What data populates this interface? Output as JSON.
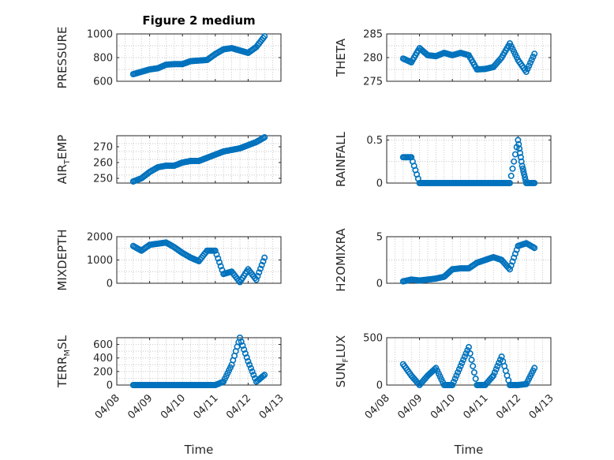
{
  "title": "Figure 2 medium",
  "xlabel": "Time",
  "colors": {
    "marker": "#0072bd",
    "axis": "#262626",
    "grid": "#b4b4b4"
  },
  "chart_data": [
    {
      "type": "scatter",
      "ylabel": [
        "PRESSURE"
      ],
      "ylim": [
        600,
        1000
      ],
      "yticks": [
        600,
        800,
        1000
      ],
      "xlim": [
        "04/08",
        "04/13"
      ],
      "xticks": [
        "04/08",
        "04/09",
        "04/10",
        "04/11",
        "04/12",
        "04/13"
      ],
      "show_x_tick_labels": false,
      "grid": true,
      "x": [
        "04/08 12:00",
        "04/08 18:00",
        "04/09 00:00",
        "04/09 06:00",
        "04/09 12:00",
        "04/09 18:00",
        "04/10 00:00",
        "04/10 06:00",
        "04/10 12:00",
        "04/10 18:00",
        "04/11 00:00",
        "04/11 06:00",
        "04/11 12:00",
        "04/11 18:00",
        "04/12 00:00",
        "04/12 06:00",
        "04/12 12:00"
      ],
      "y": [
        660,
        680,
        700,
        710,
        740,
        745,
        745,
        770,
        775,
        780,
        830,
        870,
        880,
        860,
        840,
        890,
        980
      ]
    },
    {
      "type": "scatter",
      "ylabel": [
        "THETA"
      ],
      "ylim": [
        275,
        285
      ],
      "yticks": [
        275,
        280,
        285
      ],
      "xlim": [
        "04/08",
        "04/13"
      ],
      "xticks": [
        "04/08",
        "04/09",
        "04/10",
        "04/11",
        "04/12",
        "04/13"
      ],
      "show_x_tick_labels": false,
      "grid": true,
      "x": [
        "04/08 12:00",
        "04/08 18:00",
        "04/09 00:00",
        "04/09 06:00",
        "04/09 12:00",
        "04/09 18:00",
        "04/10 00:00",
        "04/10 06:00",
        "04/10 12:00",
        "04/10 18:00",
        "04/11 00:00",
        "04/11 06:00",
        "04/11 12:00",
        "04/11 18:00",
        "04/12 00:00",
        "04/12 06:00",
        "04/12 12:00"
      ],
      "y": [
        279.8,
        279.0,
        282.0,
        280.5,
        280.3,
        281.0,
        280.5,
        281.0,
        280.5,
        277.5,
        277.6,
        278.0,
        280.0,
        283.0,
        279.5,
        277.0,
        280.8
      ]
    },
    {
      "type": "scatter",
      "ylabel": [
        "AIR",
        "T",
        "EMP"
      ],
      "ylim": [
        247,
        277
      ],
      "yticks": [
        250,
        260,
        270
      ],
      "xlim": [
        "04/08",
        "04/13"
      ],
      "xticks": [
        "04/08",
        "04/09",
        "04/10",
        "04/11",
        "04/12",
        "04/13"
      ],
      "show_x_tick_labels": false,
      "grid": true,
      "x": [
        "04/08 12:00",
        "04/08 18:00",
        "04/09 00:00",
        "04/09 06:00",
        "04/09 12:00",
        "04/09 18:00",
        "04/10 00:00",
        "04/10 06:00",
        "04/10 12:00",
        "04/10 18:00",
        "04/11 00:00",
        "04/11 06:00",
        "04/11 12:00",
        "04/11 18:00",
        "04/12 00:00",
        "04/12 06:00",
        "04/12 12:00"
      ],
      "y": [
        248,
        250,
        254,
        257,
        258,
        258,
        260,
        261,
        261,
        263,
        265,
        267,
        268,
        269,
        271,
        273,
        276
      ]
    },
    {
      "type": "scatter",
      "ylabel": [
        "RAINFALL"
      ],
      "ylim": [
        0,
        0.55
      ],
      "yticks": [
        0,
        0.5
      ],
      "xlim": [
        "04/08",
        "04/13"
      ],
      "xticks": [
        "04/08",
        "04/09",
        "04/10",
        "04/11",
        "04/12",
        "04/13"
      ],
      "show_x_tick_labels": false,
      "grid": true,
      "x": [
        "04/08 12:00",
        "04/08 18:00",
        "04/09 00:00",
        "04/09 06:00",
        "04/09 12:00",
        "04/09 18:00",
        "04/10 00:00",
        "04/10 06:00",
        "04/10 12:00",
        "04/10 18:00",
        "04/11 00:00",
        "04/11 06:00",
        "04/11 12:00",
        "04/11 18:00",
        "04/12 00:00",
        "04/12 03:00",
        "04/12 06:00",
        "04/12 12:00"
      ],
      "y": [
        0.3,
        0.3,
        0,
        0,
        0,
        0,
        0,
        0,
        0,
        0,
        0,
        0,
        0,
        0,
        0.5,
        0.2,
        0,
        0
      ]
    },
    {
      "type": "scatter",
      "ylabel": [
        "MIXDEPTH"
      ],
      "ylim": [
        0,
        2000
      ],
      "yticks": [
        0,
        1000,
        2000
      ],
      "xlim": [
        "04/08",
        "04/13"
      ],
      "xticks": [
        "04/08",
        "04/09",
        "04/10",
        "04/11",
        "04/12",
        "04/13"
      ],
      "show_x_tick_labels": false,
      "grid": true,
      "x": [
        "04/08 12:00",
        "04/08 18:00",
        "04/09 00:00",
        "04/09 06:00",
        "04/09 12:00",
        "04/09 18:00",
        "04/10 00:00",
        "04/10 06:00",
        "04/10 12:00",
        "04/10 18:00",
        "04/11 00:00",
        "04/11 06:00",
        "04/11 12:00",
        "04/11 18:00",
        "04/12 00:00",
        "04/12 06:00",
        "04/12 12:00"
      ],
      "y": [
        1600,
        1400,
        1650,
        1700,
        1750,
        1550,
        1300,
        1100,
        950,
        1400,
        1400,
        400,
        500,
        50,
        600,
        150,
        1100
      ]
    },
    {
      "type": "scatter",
      "ylabel": [
        "H2OMIXRA"
      ],
      "ylim": [
        0,
        5
      ],
      "yticks": [
        0,
        5
      ],
      "xlim": [
        "04/08",
        "04/13"
      ],
      "xticks": [
        "04/08",
        "04/09",
        "04/10",
        "04/11",
        "04/12",
        "04/13"
      ],
      "show_x_tick_labels": false,
      "grid": true,
      "x": [
        "04/08 12:00",
        "04/08 18:00",
        "04/09 00:00",
        "04/09 06:00",
        "04/09 12:00",
        "04/09 18:00",
        "04/10 00:00",
        "04/10 06:00",
        "04/10 12:00",
        "04/10 18:00",
        "04/11 00:00",
        "04/11 06:00",
        "04/11 12:00",
        "04/11 18:00",
        "04/12 00:00",
        "04/12 06:00",
        "04/12 12:00"
      ],
      "y": [
        0.2,
        0.4,
        0.3,
        0.4,
        0.5,
        0.7,
        1.5,
        1.6,
        1.6,
        2.2,
        2.5,
        2.8,
        2.5,
        1.5,
        4.0,
        4.3,
        3.8
      ]
    },
    {
      "type": "scatter",
      "ylabel": [
        "TERR",
        "M",
        "SL"
      ],
      "ylim": [
        0,
        700
      ],
      "yticks": [
        0,
        200,
        400,
        600
      ],
      "xlim": [
        "04/08",
        "04/13"
      ],
      "xticks": [
        "04/08",
        "04/09",
        "04/10",
        "04/11",
        "04/12",
        "04/13"
      ],
      "show_x_tick_labels": true,
      "grid": true,
      "x": [
        "04/08 12:00",
        "04/08 18:00",
        "04/09 00:00",
        "04/09 06:00",
        "04/09 12:00",
        "04/09 18:00",
        "04/10 00:00",
        "04/10 06:00",
        "04/10 12:00",
        "04/10 18:00",
        "04/11 00:00",
        "04/11 06:00",
        "04/11 12:00",
        "04/11 18:00",
        "04/12 00:00",
        "04/12 06:00",
        "04/12 12:00"
      ],
      "y": [
        0,
        0,
        0,
        0,
        0,
        0,
        0,
        0,
        0,
        0,
        0,
        50,
        300,
        700,
        350,
        50,
        150
      ]
    },
    {
      "type": "scatter",
      "ylabel": [
        "SUN",
        "F",
        "LUX"
      ],
      "ylim": [
        0,
        500
      ],
      "yticks": [
        0,
        500
      ],
      "xlim": [
        "04/08",
        "04/13"
      ],
      "xticks": [
        "04/08",
        "04/09",
        "04/10",
        "04/11",
        "04/12",
        "04/13"
      ],
      "show_x_tick_labels": true,
      "grid": true,
      "x": [
        "04/08 12:00",
        "04/08 18:00",
        "04/09 00:00",
        "04/09 06:00",
        "04/09 12:00",
        "04/09 18:00",
        "04/10 00:00",
        "04/10 06:00",
        "04/10 12:00",
        "04/10 18:00",
        "04/11 00:00",
        "04/11 06:00",
        "04/11 12:00",
        "04/11 18:00",
        "04/12 00:00",
        "04/12 06:00",
        "04/12 12:00"
      ],
      "y": [
        220,
        100,
        0,
        100,
        180,
        0,
        0,
        200,
        400,
        0,
        0,
        100,
        300,
        0,
        0,
        10,
        180
      ]
    }
  ]
}
